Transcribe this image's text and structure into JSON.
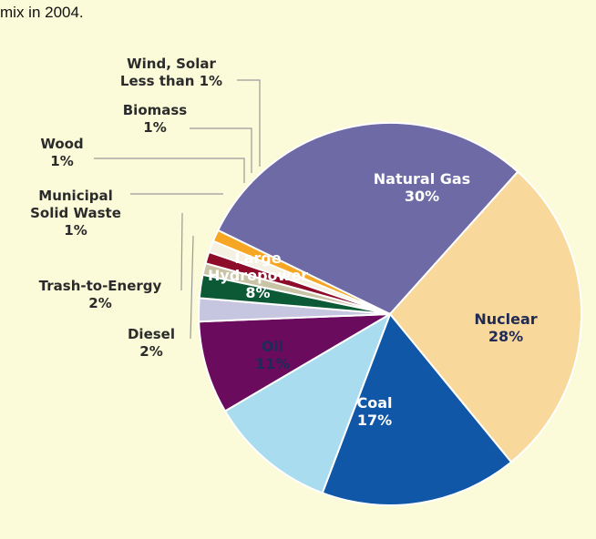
{
  "caption": "mix in 2004.",
  "chart_data": {
    "type": "pie",
    "title": "",
    "slices": [
      {
        "label": [
          "Natural Gas",
          "30%"
        ],
        "value": 30,
        "color": "#6e6aa6",
        "text_color": "#ffffff"
      },
      {
        "label": [
          "Nuclear",
          "28%"
        ],
        "value": 28,
        "color": "#f9d89b",
        "text_color": "#1f2a55"
      },
      {
        "label": [
          "Coal",
          "17%"
        ],
        "value": 17,
        "color": "#1057a8",
        "text_color": "#ffffff"
      },
      {
        "label": [
          "Oil",
          "11%"
        ],
        "value": 11,
        "color": "#a9dcef",
        "text_color": "#1f2a55"
      },
      {
        "label": [
          "Large",
          "Hydropower",
          "8%"
        ],
        "value": 8,
        "color": "#6a0b5e",
        "text_color": "#ffffff"
      },
      {
        "label": [
          "Diesel",
          "2%"
        ],
        "value": 2,
        "color": "#c6c6e0",
        "text_color": "#2b2b2b"
      },
      {
        "label": [
          "Trash-to-Energy",
          "2%"
        ],
        "value": 2,
        "color": "#0b5a35",
        "text_color": "#2b2b2b"
      },
      {
        "label": [
          "Municipal",
          "Solid Waste",
          "1%"
        ],
        "value": 1,
        "color": "#c9c4a6",
        "text_color": "#2b2b2b"
      },
      {
        "label": [
          "Wood",
          "1%"
        ],
        "value": 1,
        "color": "#8d0c2a",
        "text_color": "#2b2b2b"
      },
      {
        "label": [
          "Biomass",
          "1%"
        ],
        "value": 1,
        "color": "#f4f1e2",
        "text_color": "#2b2b2b"
      },
      {
        "label": [
          "Wind, Solar",
          "Less than 1%"
        ],
        "value": 1,
        "color": "#f6a623",
        "text_color": "#2b2b2b"
      }
    ]
  }
}
